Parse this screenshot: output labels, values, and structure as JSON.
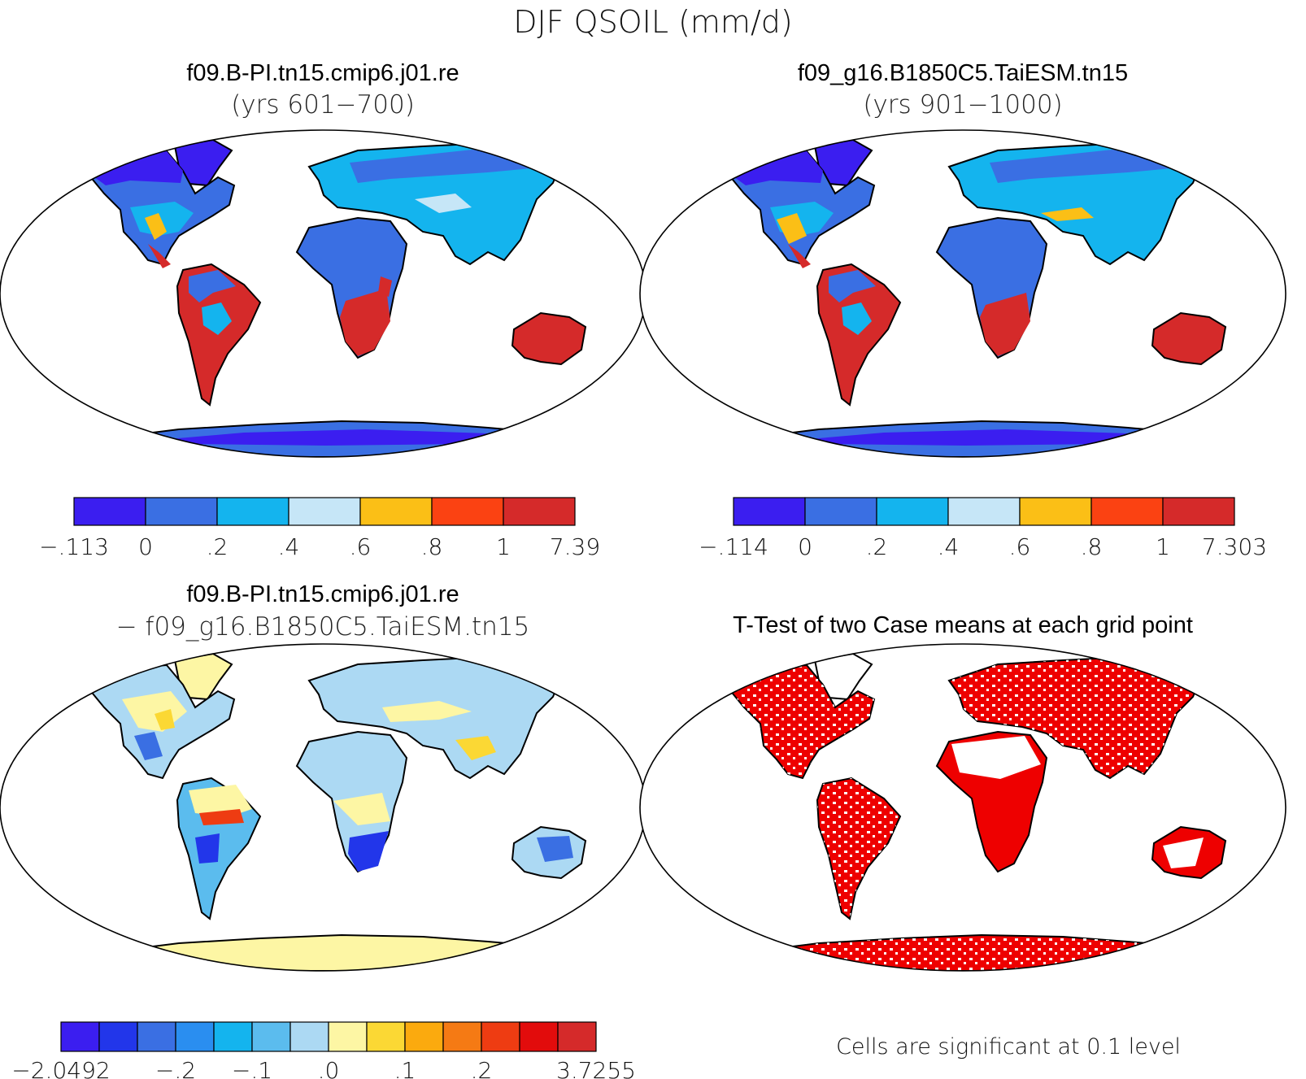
{
  "title": "DJF QSOIL (mm/d)",
  "panels": [
    {
      "id": "case1",
      "case_name": "f09.B-PI.tn15.cmip6.j01.re",
      "period": "(yrs 601−700)",
      "colorbar": {
        "colors": [
          "#3b1ef0",
          "#3a6fe3",
          "#14b4ee",
          "#c6e6f7",
          "#fbbf16",
          "#fb4212",
          "#d52a2a"
        ],
        "labels": [
          "−.113",
          "0",
          ".2",
          ".4",
          ".6",
          ".8",
          "1",
          "7.39"
        ]
      }
    },
    {
      "id": "case2",
      "case_name": "f09_g16.B1850C5.TaiESM.tn15",
      "period": "(yrs 901−1000)",
      "colorbar": {
        "colors": [
          "#3b1ef0",
          "#3a6fe3",
          "#14b4ee",
          "#c6e6f7",
          "#fbbf16",
          "#fb4212",
          "#d52a2a"
        ],
        "labels": [
          "−.114",
          "0",
          ".2",
          ".4",
          ".6",
          ".8",
          "1",
          "7.303"
        ]
      }
    },
    {
      "id": "diff",
      "case_name": "f09.B-PI.tn15.cmip6.j01.re",
      "period": "− f09_g16.B1850C5.TaiESM.tn15",
      "colorbar": {
        "colors": [
          "#3b1ef0",
          "#2236ea",
          "#3a6fe3",
          "#2a8ef0",
          "#14b4ee",
          "#5bbcee",
          "#acd9f3",
          "#fdf6a4",
          "#fbd834",
          "#fbaa0e",
          "#f57a14",
          "#ee3c12",
          "#e20c0c",
          "#d52a2a"
        ],
        "labels": [
          "−2.0492",
          "−.2",
          "−.1",
          ".0",
          ".1",
          ".2",
          "3.7255"
        ]
      }
    },
    {
      "id": "ttest",
      "case_name": "T-Test of two Case means at each grid point",
      "note": "Cells are significant at 0.1 level",
      "significant_color": "#ee0000"
    }
  ]
}
